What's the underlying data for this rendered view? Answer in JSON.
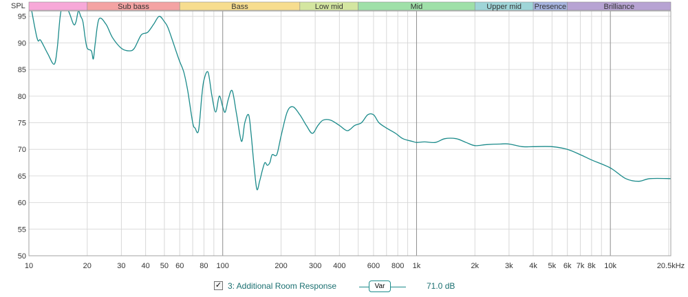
{
  "chart_data": {
    "type": "line",
    "ylabel": "SPL",
    "xscale": "log",
    "xlim": [
      10,
      20500
    ],
    "ylim": [
      50,
      96
    ],
    "grid": true,
    "yticks": [
      "50",
      "55",
      "60",
      "65",
      "70",
      "75",
      "80",
      "85",
      "90",
      "95"
    ],
    "xticks": [
      "10",
      "20",
      "30",
      "40",
      "50",
      "60",
      "80",
      "100",
      "200",
      "300",
      "400",
      "600",
      "800",
      "1k",
      "2k",
      "3k",
      "4k",
      "5k",
      "6k",
      "7k",
      "8k",
      "10k",
      "20.5kHz"
    ],
    "bands": [
      {
        "label": "",
        "from": 10,
        "to": 20,
        "color": "#f7a8d8"
      },
      {
        "label": "Sub bass",
        "from": 20,
        "to": 60,
        "color": "#f4a3a3"
      },
      {
        "label": "Bass",
        "from": 60,
        "to": 250,
        "color": "#f7dd8f"
      },
      {
        "label": "Low mid",
        "from": 250,
        "to": 500,
        "color": "#d4e6a0"
      },
      {
        "label": "Mid",
        "from": 500,
        "to": 2000,
        "color": "#9fe0a8"
      },
      {
        "label": "Upper mid",
        "from": 2000,
        "to": 4000,
        "color": "#9fd5d8"
      },
      {
        "label": "Presence",
        "from": 4000,
        "to": 6000,
        "color": "#a7b4e0"
      },
      {
        "label": "Brilliance",
        "from": 6000,
        "to": 20500,
        "color": "#b7a3d3"
      }
    ],
    "series": [
      {
        "name": "3: Additional Room Response",
        "color": "#1a8a8a",
        "x": [
          10,
          11,
          11.5,
          12.5,
          13.5,
          14,
          14.5,
          15,
          16,
          17,
          17.5,
          18,
          18.5,
          19,
          19.5,
          20,
          21,
          21.5,
          22,
          23,
          25,
          27,
          30,
          33,
          35,
          38,
          41,
          44,
          47,
          50,
          52,
          55,
          58,
          60,
          63,
          66,
          70,
          72,
          75,
          78,
          80,
          84,
          88,
          92,
          96,
          100,
          103,
          107,
          112,
          118,
          125,
          130,
          136,
          140,
          145,
          150,
          155,
          160,
          165,
          170,
          175,
          180,
          190,
          200,
          215,
          230,
          250,
          270,
          290,
          310,
          330,
          360,
          400,
          440,
          480,
          520,
          560,
          600,
          640,
          700,
          780,
          850,
          950,
          1000,
          1100,
          1250,
          1400,
          1600,
          1800,
          2000,
          2300,
          2700,
          3000,
          3500,
          4000,
          5000,
          6000,
          7000,
          8000,
          10000,
          12000,
          14000,
          16000,
          20500
        ],
        "y": [
          99,
          91,
          90.5,
          88,
          86,
          89,
          95,
          97,
          96,
          93.5,
          94,
          96,
          95,
          94,
          91,
          89,
          88.5,
          87,
          90,
          94.5,
          93.5,
          91,
          89,
          88.5,
          89,
          91.5,
          92,
          93.5,
          95,
          94,
          93,
          90.5,
          88,
          86.5,
          84.5,
          81,
          75,
          74,
          73.5,
          80,
          83,
          84.5,
          80,
          77,
          80,
          78,
          77,
          79.5,
          81,
          76.5,
          71.5,
          75,
          76.5,
          73,
          67,
          62.5,
          64,
          66,
          67.5,
          67,
          67.5,
          69,
          69,
          72.5,
          77,
          78,
          76.5,
          74.5,
          73,
          74.5,
          75.5,
          75.5,
          74.5,
          73.5,
          74.5,
          75,
          76.5,
          76.5,
          75,
          74,
          73,
          72,
          71.5,
          71.3,
          71.4,
          71.3,
          72,
          72,
          71.3,
          70.7,
          70.9,
          71,
          71,
          70.5,
          70.5,
          70.5,
          70,
          69,
          68,
          66.5,
          64.5,
          64,
          64.5,
          64.5
        ]
      }
    ]
  },
  "legend": {
    "checked": true,
    "check_mark": "✓",
    "label": "3: Additional Room Response",
    "button": "Var",
    "value": "71.0 dB"
  }
}
